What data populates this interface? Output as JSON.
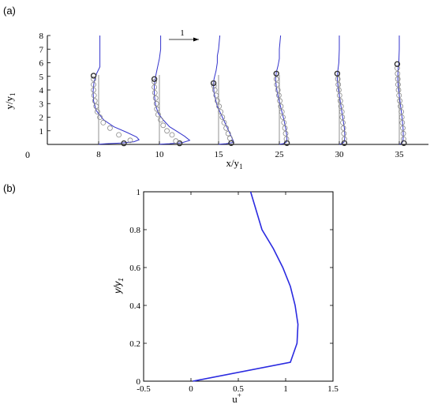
{
  "chart_data": [
    {
      "panel_label": "(a)",
      "type": "line",
      "xlabel": "x/y₁",
      "ylabel": "y/y₁",
      "ylim": [
        0,
        8
      ],
      "yticks": [
        "1",
        "2",
        "3",
        "4",
        "5",
        "6",
        "7",
        "8"
      ],
      "origin_label": "0",
      "arrow_label": "1",
      "stations": [
        {
          "label": "8",
          "curve_offset": [
            [
              0,
              0.02
            ],
            [
              0.3,
              0.05
            ],
            [
              0.9,
              0.1
            ],
            [
              1.4,
              0.2
            ],
            [
              1.6,
              0.35
            ],
            [
              1.5,
              0.55
            ],
            [
              1.1,
              0.9
            ],
            [
              0.6,
              1.3
            ],
            [
              0.2,
              1.8
            ],
            [
              -0.1,
              2.5
            ],
            [
              -0.2,
              3.2
            ],
            [
              -0.22,
              3.9
            ],
            [
              -0.18,
              4.6
            ],
            [
              -0.08,
              5.2
            ],
            [
              0.05,
              5.7
            ],
            [
              0.05,
              6.2
            ],
            [
              0.05,
              7
            ],
            [
              0.05,
              8
            ]
          ],
          "circles": [
            [
              1.0,
              0.08
            ],
            [
              1.25,
              0.3
            ],
            [
              0.8,
              0.7
            ],
            [
              0.45,
              1.2
            ],
            [
              0.18,
              1.6
            ],
            [
              0.05,
              2.0
            ],
            [
              -0.05,
              2.4
            ],
            [
              -0.1,
              2.8
            ],
            [
              -0.15,
              3.2
            ],
            [
              -0.18,
              3.6
            ],
            [
              -0.2,
              4.0
            ],
            [
              -0.2,
              4.4
            ],
            [
              -0.2,
              4.8
            ],
            [
              -0.2,
              5.05
            ]
          ]
        },
        {
          "label": "10",
          "curve_offset": [
            [
              0,
              0.02
            ],
            [
              0.4,
              0.05
            ],
            [
              0.9,
              0.12
            ],
            [
              1.2,
              0.3
            ],
            [
              1.0,
              0.6
            ],
            [
              0.7,
              0.95
            ],
            [
              0.4,
              1.3
            ],
            [
              0.15,
              1.8
            ],
            [
              -0.05,
              2.3
            ],
            [
              -0.15,
              2.9
            ],
            [
              -0.2,
              3.6
            ],
            [
              -0.2,
              4.3
            ],
            [
              -0.15,
              5.0
            ],
            [
              -0.08,
              5.6
            ],
            [
              0,
              6.3
            ],
            [
              0.05,
              7
            ],
            [
              0.05,
              8
            ]
          ],
          "circles": [
            [
              0.8,
              0.08
            ],
            [
              0.65,
              0.25
            ],
            [
              0.5,
              0.7
            ],
            [
              0.3,
              1.0
            ],
            [
              0.15,
              1.4
            ],
            [
              0.05,
              1.8
            ],
            [
              -0.05,
              2.2
            ],
            [
              -0.1,
              2.6
            ],
            [
              -0.12,
              3.0
            ],
            [
              -0.15,
              3.4
            ],
            [
              -0.18,
              3.8
            ],
            [
              -0.2,
              4.2
            ],
            [
              -0.2,
              4.6
            ],
            [
              -0.2,
              4.8
            ]
          ]
        },
        {
          "label": "15",
          "curve_offset": [
            [
              0,
              0.02
            ],
            [
              0.3,
              0.05
            ],
            [
              0.6,
              0.15
            ],
            [
              0.55,
              0.4
            ],
            [
              0.45,
              0.8
            ],
            [
              0.35,
              1.2
            ],
            [
              0.25,
              1.6
            ],
            [
              0.15,
              2.0
            ],
            [
              0.05,
              2.4
            ],
            [
              -0.05,
              2.8
            ],
            [
              -0.12,
              3.3
            ],
            [
              -0.18,
              3.8
            ],
            [
              -0.2,
              4.3
            ],
            [
              -0.18,
              4.8
            ],
            [
              -0.1,
              5.4
            ],
            [
              -0.05,
              6.0
            ],
            [
              -0.05,
              6.5
            ],
            [
              0.0,
              7.0
            ],
            [
              0.05,
              8.0
            ]
          ],
          "circles": [
            [
              0.5,
              0.1
            ],
            [
              0.45,
              0.45
            ],
            [
              0.38,
              0.8
            ],
            [
              0.3,
              1.2
            ],
            [
              0.22,
              1.6
            ],
            [
              0.15,
              2.0
            ],
            [
              0.08,
              2.4
            ],
            [
              0.02,
              2.8
            ],
            [
              -0.05,
              3.2
            ],
            [
              -0.1,
              3.6
            ],
            [
              -0.15,
              4.0
            ],
            [
              -0.18,
              4.3
            ],
            [
              -0.2,
              4.5
            ]
          ]
        },
        {
          "label": "25",
          "curve_offset": [
            [
              0,
              0.02
            ],
            [
              0.15,
              0.05
            ],
            [
              0.3,
              0.2
            ],
            [
              0.3,
              0.6
            ],
            [
              0.25,
              1.2
            ],
            [
              0.18,
              1.8
            ],
            [
              0.1,
              2.4
            ],
            [
              0.02,
              3.0
            ],
            [
              -0.06,
              3.6
            ],
            [
              -0.12,
              4.2
            ],
            [
              -0.15,
              4.8
            ],
            [
              -0.12,
              5.3
            ],
            [
              -0.05,
              5.8
            ],
            [
              0,
              6.3
            ],
            [
              0,
              7.0
            ],
            [
              0.05,
              8.0
            ]
          ],
          "circles": [
            [
              0.3,
              0.1
            ],
            [
              0.28,
              0.4
            ],
            [
              0.25,
              0.8
            ],
            [
              0.22,
              1.2
            ],
            [
              0.18,
              1.6
            ],
            [
              0.14,
              2.0
            ],
            [
              0.1,
              2.4
            ],
            [
              0.06,
              2.8
            ],
            [
              0.02,
              3.2
            ],
            [
              -0.02,
              3.6
            ],
            [
              -0.06,
              4.0
            ],
            [
              -0.1,
              4.4
            ],
            [
              -0.12,
              4.8
            ],
            [
              -0.12,
              5.2
            ]
          ]
        },
        {
          "label": "30",
          "curve_offset": [
            [
              0,
              0.02
            ],
            [
              0.1,
              0.05
            ],
            [
              0.2,
              0.2
            ],
            [
              0.22,
              0.6
            ],
            [
              0.2,
              1.2
            ],
            [
              0.15,
              1.8
            ],
            [
              0.1,
              2.4
            ],
            [
              0.05,
              3.0
            ],
            [
              0,
              3.6
            ],
            [
              -0.05,
              4.2
            ],
            [
              -0.08,
              4.8
            ],
            [
              -0.06,
              5.4
            ],
            [
              -0.02,
              6.0
            ],
            [
              0,
              7.0
            ],
            [
              0,
              8.0
            ]
          ],
          "circles": [
            [
              0.2,
              0.1
            ],
            [
              0.2,
              0.4
            ],
            [
              0.18,
              0.8
            ],
            [
              0.16,
              1.2
            ],
            [
              0.14,
              1.6
            ],
            [
              0.12,
              2.0
            ],
            [
              0.1,
              2.4
            ],
            [
              0.07,
              2.8
            ],
            [
              0.04,
              3.2
            ],
            [
              0.01,
              3.6
            ],
            [
              -0.02,
              4.0
            ],
            [
              -0.04,
              4.4
            ],
            [
              -0.06,
              4.8
            ],
            [
              -0.08,
              5.2
            ]
          ]
        },
        {
          "label": "35",
          "curve_offset": [
            [
              0,
              0.02
            ],
            [
              0.08,
              0.05
            ],
            [
              0.14,
              0.2
            ],
            [
              0.16,
              0.6
            ],
            [
              0.15,
              1.2
            ],
            [
              0.12,
              1.8
            ],
            [
              0.08,
              2.4
            ],
            [
              0.04,
              3.0
            ],
            [
              0,
              3.6
            ],
            [
              -0.04,
              4.2
            ],
            [
              -0.06,
              4.8
            ],
            [
              -0.05,
              5.4
            ],
            [
              -0.02,
              6.0
            ],
            [
              0,
              7.0
            ],
            [
              0,
              8.0
            ]
          ],
          "circles": [
            [
              0.18,
              0.1
            ],
            [
              0.17,
              0.4
            ],
            [
              0.16,
              0.8
            ],
            [
              0.14,
              1.2
            ],
            [
              0.12,
              1.6
            ],
            [
              0.1,
              2.0
            ],
            [
              0.08,
              2.4
            ],
            [
              0.05,
              2.8
            ],
            [
              0.02,
              3.2
            ],
            [
              -0.01,
              3.6
            ],
            [
              -0.03,
              4.0
            ],
            [
              -0.05,
              4.4
            ],
            [
              -0.06,
              4.8
            ],
            [
              -0.07,
              5.2
            ],
            [
              -0.08,
              5.6
            ],
            [
              -0.08,
              5.9
            ]
          ]
        }
      ],
      "reference_line_top": 5.1,
      "curve_color": "#3333cc",
      "marker_color": "#888888"
    },
    {
      "panel_label": "(b)",
      "type": "line",
      "xlabel": "u⁺",
      "ylabel": "y/y₁",
      "xlim": [
        -0.5,
        1.5
      ],
      "ylim": [
        0,
        1
      ],
      "xticks": [
        "-0.5",
        "0",
        "0.5",
        "1",
        "1.5"
      ],
      "yticks": [
        "0",
        "0.2",
        "0.4",
        "0.6",
        "0.8",
        "1"
      ],
      "series": [
        {
          "x": [
            0.02,
            1.05,
            1.12,
            1.13,
            1.1,
            1.05,
            0.97,
            0.87,
            0.75,
            0.63
          ],
          "y": [
            0.0,
            0.1,
            0.2,
            0.3,
            0.4,
            0.5,
            0.6,
            0.7,
            0.8,
            1.0
          ]
        }
      ],
      "line_color": "#2a2ae0"
    }
  ]
}
